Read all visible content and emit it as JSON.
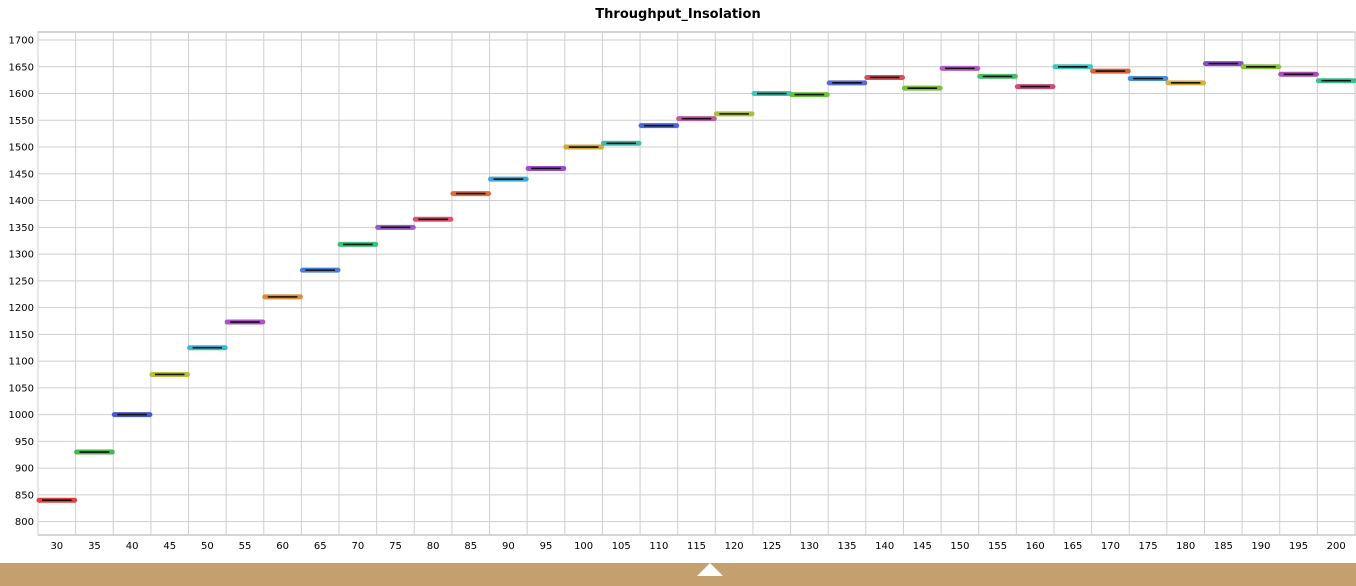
{
  "chart_data": {
    "type": "line",
    "title": "Throughput_Insolation",
    "xlabel": "",
    "ylabel": "",
    "categories": [
      30,
      35,
      40,
      45,
      50,
      55,
      60,
      65,
      70,
      75,
      80,
      85,
      90,
      95,
      100,
      105,
      110,
      115,
      120,
      125,
      130,
      135,
      140,
      145,
      150,
      155,
      160,
      165,
      170,
      175,
      180,
      185,
      190,
      195,
      200
    ],
    "values": [
      840,
      930,
      1000,
      1075,
      1125,
      1173,
      1220,
      1270,
      1318,
      1350,
      1365,
      1413,
      1440,
      1460,
      1500,
      1507,
      1540,
      1553,
      1562,
      1600,
      1598,
      1620,
      1630,
      1610,
      1647,
      1632,
      1613,
      1650,
      1642,
      1628,
      1620,
      1656,
      1650,
      1636,
      1624
    ],
    "segment_colors": [
      "#e0403a",
      "#44b84a",
      "#4a58c8",
      "#b8bf3a",
      "#3ab8d8",
      "#b050c8",
      "#e08a3a",
      "#4a7fd8",
      "#3ac07a",
      "#9a5ac8",
      "#e0506a",
      "#e06a3a",
      "#3aa8d8",
      "#a04ad0",
      "#d0a83a",
      "#3ac0a8",
      "#4a68d8",
      "#c05aa0",
      "#a8c03a",
      "#3ac8b8",
      "#6ac03a",
      "#5a6ad8",
      "#e04a5a",
      "#7ac03a",
      "#b05ac8",
      "#4ac06a",
      "#d04a7a",
      "#3ac8c0",
      "#e0603a",
      "#4a90d8",
      "#d8b03a",
      "#8a4ad0",
      "#8ac03a",
      "#b04ab8",
      "#3ac090"
    ],
    "ylim": [
      775,
      1715
    ],
    "yticks": [
      800,
      850,
      900,
      950,
      1000,
      1050,
      1100,
      1150,
      1200,
      1250,
      1300,
      1350,
      1400,
      1450,
      1500,
      1550,
      1600,
      1650,
      1700
    ],
    "grid": true,
    "legend": "none"
  }
}
